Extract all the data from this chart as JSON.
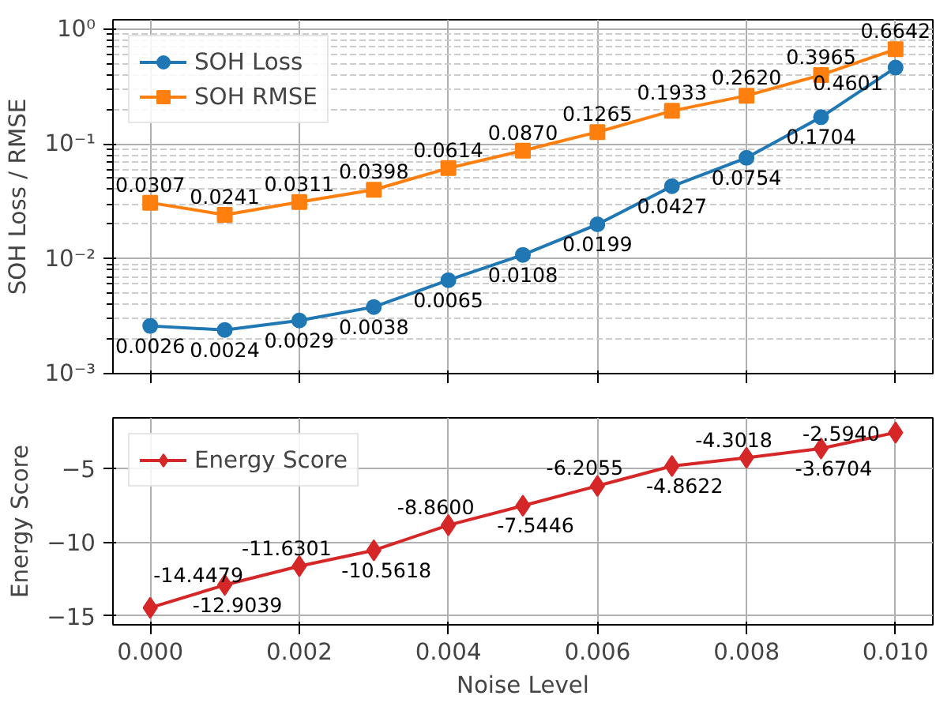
{
  "chart_data": [
    {
      "type": "line",
      "ylabel": "SOH Loss / RMSE",
      "log": true,
      "x": [
        0,
        0.001,
        0.002,
        0.003,
        0.004,
        0.005,
        0.006,
        0.007,
        0.008,
        0.009,
        0.01
      ],
      "xlim": [
        -0.0005,
        0.0105
      ],
      "xticks": [
        0,
        0.002,
        0.004,
        0.006,
        0.008,
        0.01
      ],
      "ylim": [
        0.001,
        1.2
      ],
      "yticks": [
        {
          "value": 0.001,
          "label": "10⁻³"
        },
        {
          "value": 0.01,
          "label": "10⁻²"
        },
        {
          "value": 0.1,
          "label": "10⁻¹"
        },
        {
          "value": 1,
          "label": "10⁰"
        }
      ],
      "tick_labels": "y",
      "grid": true,
      "legend": "top left",
      "series": [
        {
          "name": "SOH Loss",
          "color": "#1f77b4",
          "marker": "circle",
          "values": [
            0.0026,
            0.0024,
            0.0029,
            0.0038,
            0.0065,
            0.0108,
            0.0199,
            0.0427,
            0.0754,
            0.1704,
            0.4601
          ],
          "value_labels": [
            "0.0026",
            "0.0024",
            "0.0029",
            "0.0038",
            "0.0065",
            "0.0108",
            "0.0199",
            "0.0427",
            "0.0754",
            "0.1704",
            "0.4601"
          ]
        },
        {
          "name": "SOH RMSE",
          "color": "#ff7f0e",
          "marker": "square",
          "values": [
            0.0307,
            0.0241,
            0.0311,
            0.0398,
            0.0614,
            0.087,
            0.1265,
            0.1933,
            0.262,
            0.3965,
            0.6642
          ],
          "value_labels": [
            "0.0307",
            "0.0241",
            "0.0311",
            "0.0398",
            "0.0614",
            "0.0870",
            "0.1265",
            "0.1933",
            "0.2620",
            "0.3965",
            "0.6642"
          ]
        }
      ]
    },
    {
      "type": "line",
      "xlabel": "Noise Level",
      "ylabel": "Energy Score",
      "x": [
        0,
        0.001,
        0.002,
        0.003,
        0.004,
        0.005,
        0.006,
        0.007,
        0.008,
        0.009,
        0.01
      ],
      "xlim": [
        -0.0005,
        0.0105
      ],
      "xticks": [
        {
          "value": 0,
          "label": "0.000"
        },
        {
          "value": 0.002,
          "label": "0.002"
        },
        {
          "value": 0.004,
          "label": "0.004"
        },
        {
          "value": 0.006,
          "label": "0.006"
        },
        {
          "value": 0.008,
          "label": "0.008"
        },
        {
          "value": 0.01,
          "label": "0.010"
        }
      ],
      "ylim": [
        -15.6,
        -1.6
      ],
      "yticks": [
        -15,
        -10,
        -5
      ],
      "grid": true,
      "legend": "top left",
      "series": [
        {
          "name": "Energy Score",
          "color": "#d62728",
          "marker": "diamond",
          "values": [
            -14.4479,
            -12.9039,
            -11.6301,
            -10.5618,
            -8.86,
            -7.5446,
            -6.2055,
            -4.8622,
            -4.3018,
            -3.6704,
            -2.594
          ],
          "value_labels": [
            "-14.4479",
            "-12.9039",
            "-11.6301",
            "-10.5618",
            "-8.8600",
            "-7.5446",
            "-6.2055",
            "-4.8622",
            "-4.3018",
            "-3.6704",
            "-2.5940"
          ]
        }
      ]
    }
  ]
}
